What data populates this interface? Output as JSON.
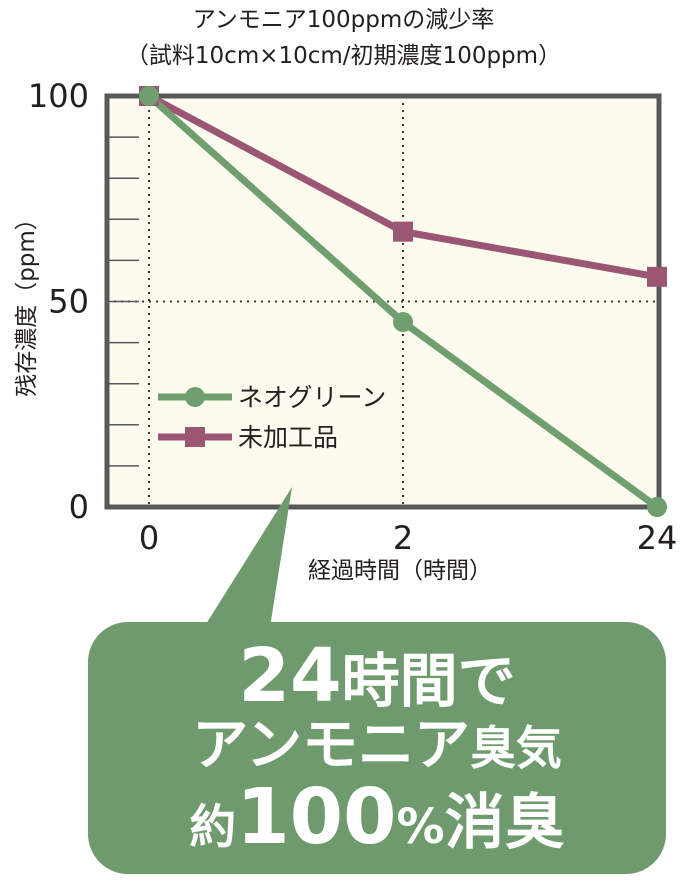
{
  "colors": {
    "plot_background": "#fdfbee",
    "frame": "#57585a",
    "neo_green_series": "#6f9f6e",
    "untreated_series": "#9a5673",
    "callout_background": "#6f9a6e",
    "callout_text": "#ffffff",
    "grid": "#3a3a3a"
  },
  "chart_data": {
    "type": "line",
    "title": "アンモニア100ppmの減少率",
    "subtitle": "（試料10cm×10cm/初期濃度100ppm）",
    "xlabel": "経過時間（時間）",
    "ylabel": "残存濃度（ppm）",
    "x": [
      "0",
      "2",
      "24"
    ],
    "x_axis_note": "categorical spacing, evenly placed ticks",
    "ylim": [
      0,
      100
    ],
    "yticks": [
      "100",
      "50",
      "0"
    ],
    "grid": "dotted lines at x=2 and y=50, plus x=0",
    "legend_position": "lower-left inside plot",
    "series": [
      {
        "name": "ネオグリーン",
        "marker": "circle",
        "color_key": "neo_green_series",
        "values": [
          100,
          45,
          0
        ]
      },
      {
        "name": "未加工品",
        "marker": "square",
        "color_key": "untreated_series",
        "values": [
          100,
          67,
          56
        ]
      }
    ]
  },
  "callout": {
    "line1_part1": "24",
    "line1_part2": "時間で",
    "line2_part1": "アンモニア",
    "line2_part2": "臭気",
    "line3_part1": "約",
    "line3_part2": "100",
    "line3_part3": "%",
    "line3_part4": "消臭"
  }
}
